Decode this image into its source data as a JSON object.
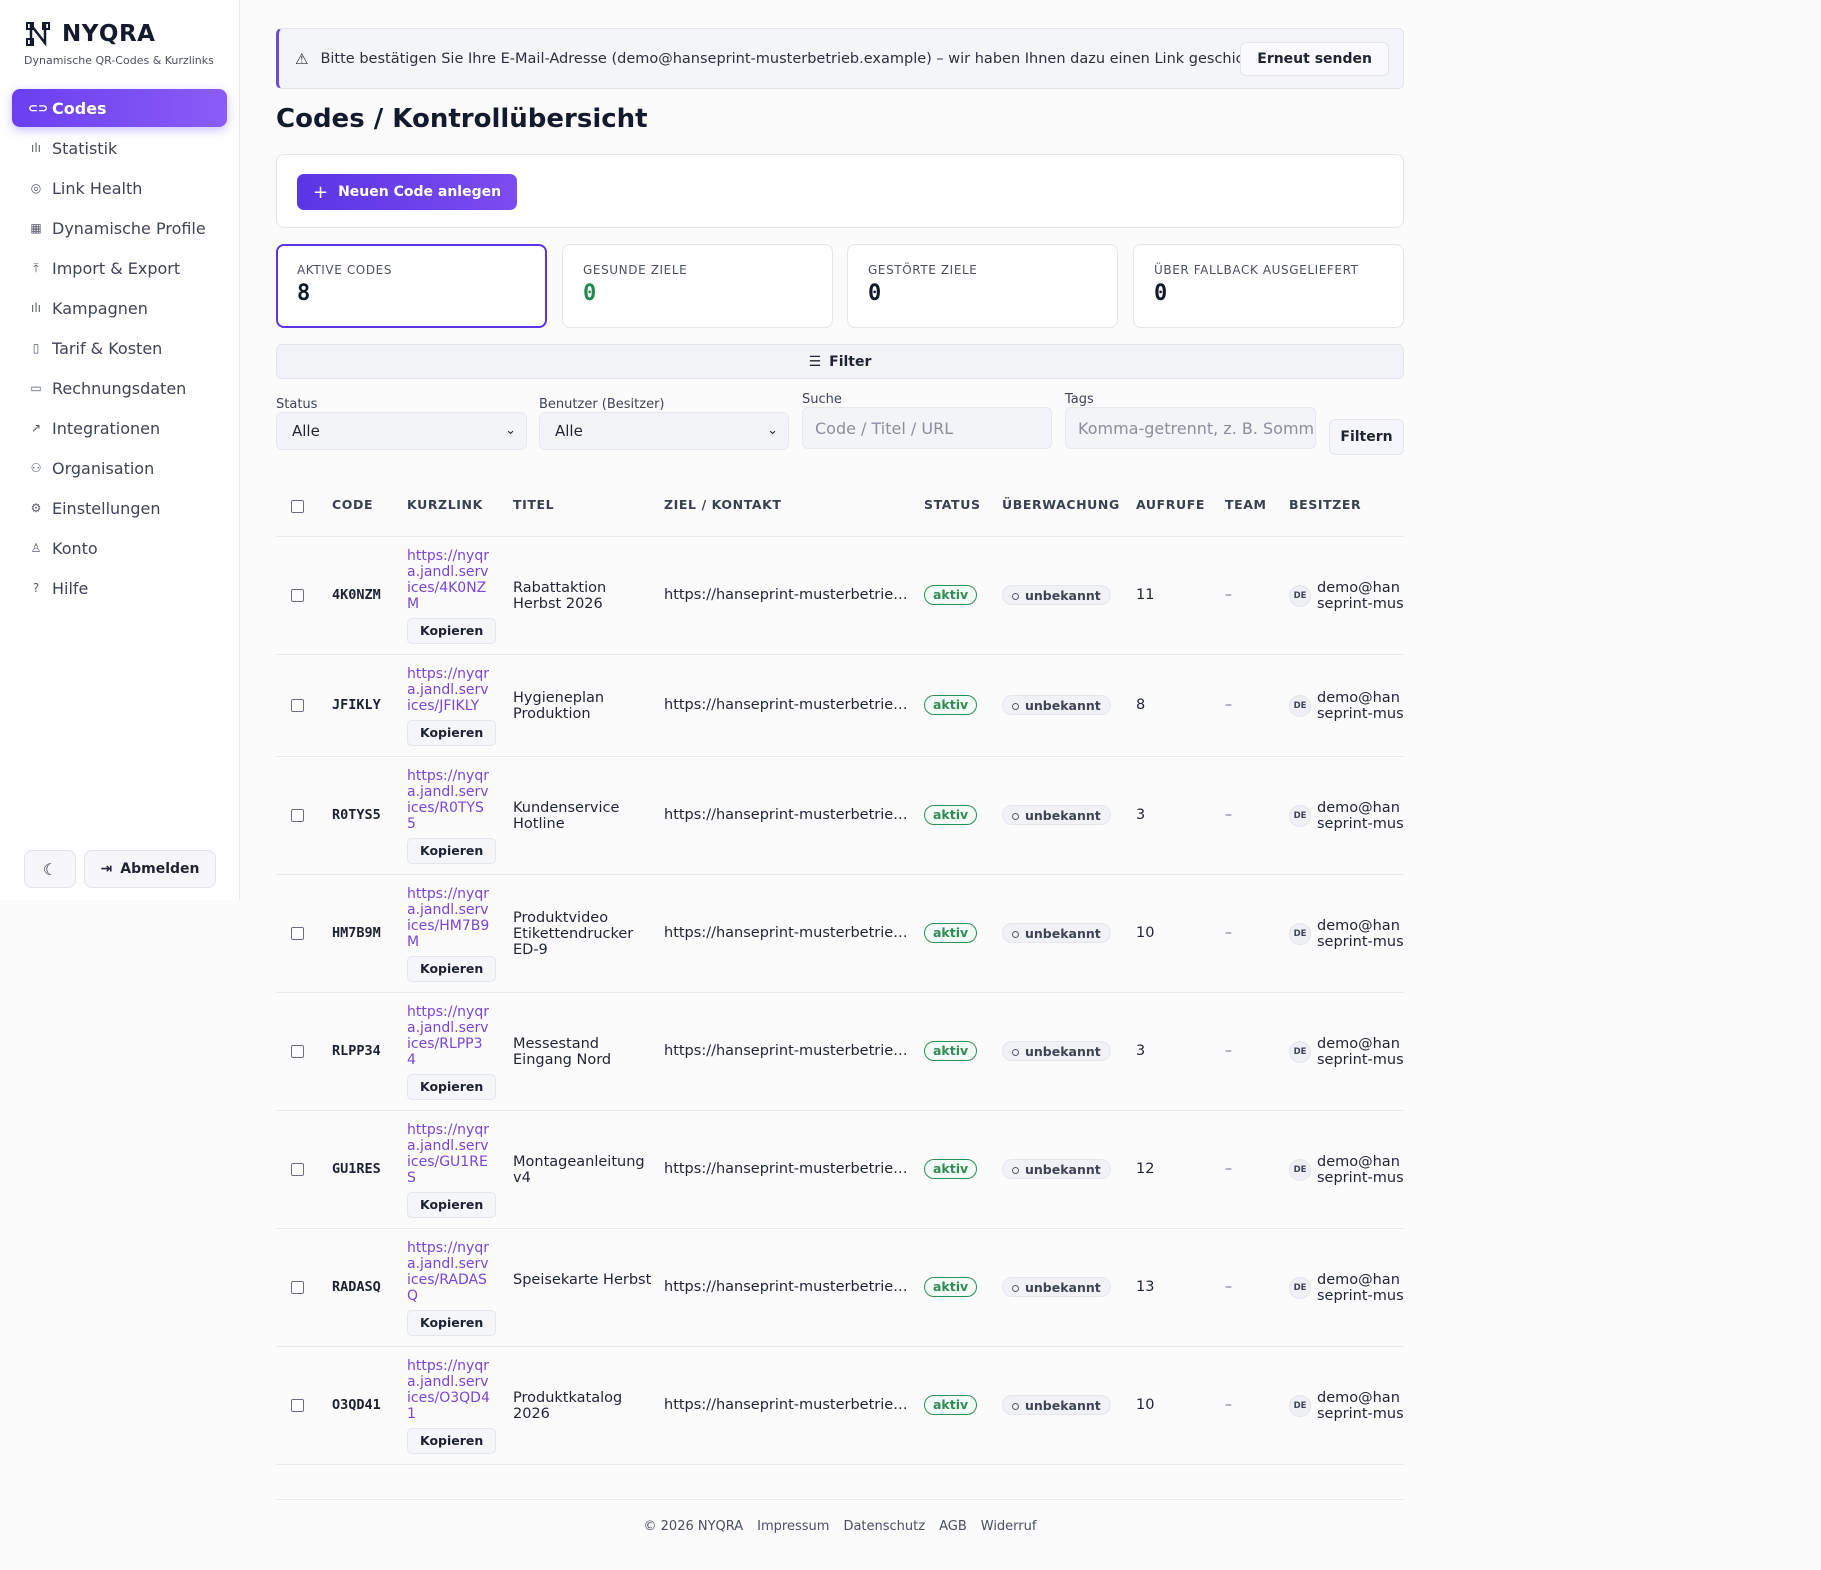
{
  "brand": {
    "name": "NYQRA",
    "subtitle": "Dynamische QR-Codes & Kurzlinks"
  },
  "sidebar": {
    "items": [
      {
        "label": "Codes",
        "icon": "link-icon",
        "glyph": "⊂⊃",
        "active": true
      },
      {
        "label": "Statistik",
        "icon": "bar-chart-icon",
        "glyph": "ılı"
      },
      {
        "label": "Link Health",
        "icon": "pin-icon",
        "glyph": "◎"
      },
      {
        "label": "Dynamische Profile",
        "icon": "grid-icon",
        "glyph": "▦"
      },
      {
        "label": "Import & Export",
        "icon": "upload-icon",
        "glyph": "⤒"
      },
      {
        "label": "Kampagnen",
        "icon": "bar-chart-icon",
        "glyph": "ılı"
      },
      {
        "label": "Tarif & Kosten",
        "icon": "receipt-icon",
        "glyph": "▯"
      },
      {
        "label": "Rechnungsdaten",
        "icon": "document-icon",
        "glyph": "▭"
      },
      {
        "label": "Integrationen",
        "icon": "external-link-icon",
        "glyph": "↗"
      },
      {
        "label": "Organisation",
        "icon": "users-icon",
        "glyph": "⚇"
      },
      {
        "label": "Einstellungen",
        "icon": "gear-icon",
        "glyph": "⚙"
      },
      {
        "label": "Konto",
        "icon": "user-icon",
        "glyph": "♙"
      },
      {
        "label": "Hilfe",
        "icon": "help-icon",
        "glyph": "?"
      }
    ],
    "logout_label": "Abmelden"
  },
  "alert": {
    "text": "Bitte bestätigen Sie Ihre E-Mail-Adresse (demo@hanseprint-musterbetrieb.example) – wir haben Ihnen dazu einen Link geschickt.",
    "button": "Erneut senden"
  },
  "page_title": "Codes / Kontrollübersicht",
  "new_code_label": "Neuen Code anlegen",
  "stats": [
    {
      "label": "AKTIVE CODES",
      "value": "8"
    },
    {
      "label": "GESUNDE ZIELE",
      "value": "0"
    },
    {
      "label": "GESTÖRTE ZIELE",
      "value": "0"
    },
    {
      "label": "ÜBER FALLBACK AUSGELIEFERT",
      "value": "0"
    }
  ],
  "filter": {
    "bar_label": "Filter",
    "status_label": "Status",
    "status_value": "Alle",
    "owner_label": "Benutzer (Besitzer)",
    "owner_value": "Alle",
    "search_label": "Suche",
    "search_placeholder": "Code / Titel / URL",
    "tags_label": "Tags",
    "tags_placeholder": "Komma-getrennt, z. B. Sommer",
    "submit": "Filtern"
  },
  "table": {
    "headers": [
      "CODE",
      "KURZLINK",
      "TITEL",
      "ZIEL / KONTAKT",
      "STATUS",
      "ÜBERWACHUNG",
      "AUFRUFE",
      "TEAM",
      "BESITZER"
    ],
    "copy_label": "Kopieren",
    "rows": [
      {
        "code": "4K0NZM",
        "shortlink": "https://nyqra.jandl.services/4K0NZM",
        "title": "Rabattaktion Herbst 2026",
        "target": "https://hanseprint-musterbetrie…",
        "status": "aktiv",
        "monitoring": "unbekannt",
        "views": "11",
        "team": "–",
        "owner_initials": "DE",
        "owner": "demo@hanseprint-musterbetrieb.example"
      },
      {
        "code": "JFIKLY",
        "shortlink": "https://nyqra.jandl.services/JFIKLY",
        "title": "Hygieneplan Produktion",
        "target": "https://hanseprint-musterbetrie…",
        "status": "aktiv",
        "monitoring": "unbekannt",
        "views": "8",
        "team": "–",
        "owner_initials": "DE",
        "owner": "demo@hanseprint-musterbetrieb.example"
      },
      {
        "code": "R0TYS5",
        "shortlink": "https://nyqra.jandl.services/R0TYS5",
        "title": "Kundenservice Hotline",
        "target": "https://hanseprint-musterbetrie…",
        "status": "aktiv",
        "monitoring": "unbekannt",
        "views": "3",
        "team": "–",
        "owner_initials": "DE",
        "owner": "demo@hanseprint-musterbetrieb.example"
      },
      {
        "code": "HM7B9M",
        "shortlink": "https://nyqra.jandl.services/HM7B9M",
        "title": "Produktvideo Etikettendrucker ED-9",
        "target": "https://hanseprint-musterbetrie…",
        "status": "aktiv",
        "monitoring": "unbekannt",
        "views": "10",
        "team": "–",
        "owner_initials": "DE",
        "owner": "demo@hanseprint-musterbetrieb.example"
      },
      {
        "code": "RLPP34",
        "shortlink": "https://nyqra.jandl.services/RLPP34",
        "title": "Messestand Eingang Nord",
        "target": "https://hanseprint-musterbetrie…",
        "status": "aktiv",
        "monitoring": "unbekannt",
        "views": "3",
        "team": "–",
        "owner_initials": "DE",
        "owner": "demo@hanseprint-musterbetrieb.example"
      },
      {
        "code": "GU1RES",
        "shortlink": "https://nyqra.jandl.services/GU1RES",
        "title": "Montageanleitung v4",
        "target": "https://hanseprint-musterbetrie…",
        "status": "aktiv",
        "monitoring": "unbekannt",
        "views": "12",
        "team": "–",
        "owner_initials": "DE",
        "owner": "demo@hanseprint-musterbetrieb.example"
      },
      {
        "code": "RADASQ",
        "shortlink": "https://nyqra.jandl.services/RADASQ",
        "title": "Speisekarte Herbst",
        "target": "https://hanseprint-musterbetrie…",
        "status": "aktiv",
        "monitoring": "unbekannt",
        "views": "13",
        "team": "–",
        "owner_initials": "DE",
        "owner": "demo@hanseprint-musterbetrieb.example"
      },
      {
        "code": "O3QD41",
        "shortlink": "https://nyqra.jandl.services/O3QD41",
        "title": "Produktkatalog 2026",
        "target": "https://hanseprint-musterbetrie…",
        "status": "aktiv",
        "monitoring": "unbekannt",
        "views": "10",
        "team": "–",
        "owner_initials": "DE",
        "owner": "demo@hanseprint-musterbetrieb.example"
      }
    ]
  },
  "footer": [
    "© 2026 NYQRA",
    "Impressum",
    "Datenschutz",
    "AGB",
    "Widerruf"
  ]
}
